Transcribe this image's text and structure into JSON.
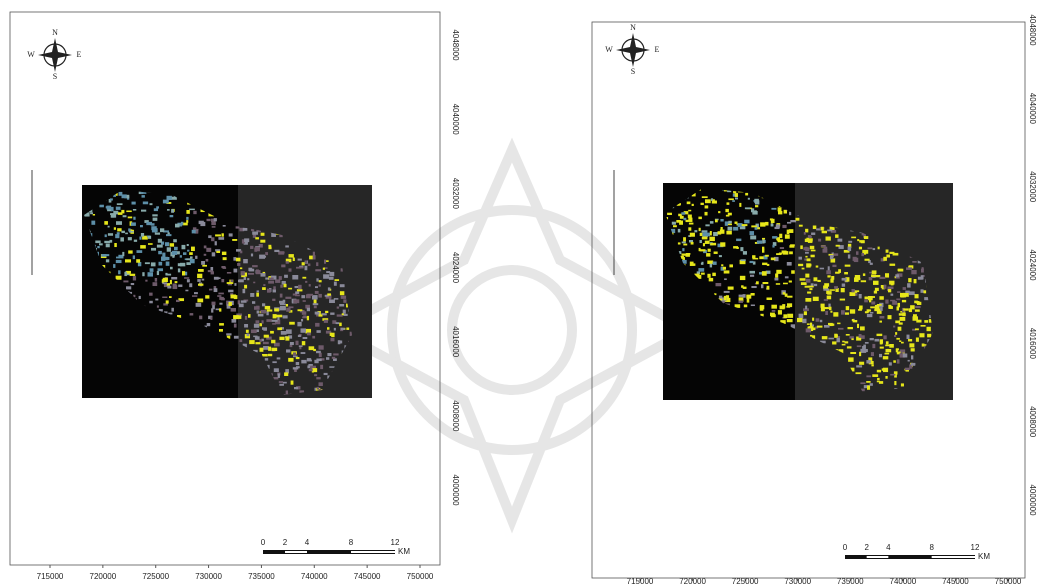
{
  "panels": [
    {
      "compass": {
        "n": "N",
        "e": "E",
        "s": "S",
        "w": "W"
      },
      "x_labels": [
        715000,
        720000,
        725000,
        730000,
        735000,
        740000,
        745000,
        750000
      ],
      "y_labels": [
        4048000,
        4040000,
        4032000,
        4024000,
        4016000,
        4008000,
        4000000
      ],
      "scale": {
        "ticks": [
          0,
          2,
          4,
          8,
          12
        ],
        "unit": "KM"
      }
    },
    {
      "compass": {
        "n": "N",
        "e": "E",
        "s": "S",
        "w": "W"
      },
      "x_labels": [
        715000,
        720000,
        725000,
        730000,
        735000,
        740000,
        745000,
        750000
      ],
      "y_labels": [
        4048000,
        4040000,
        4032000,
        4024000,
        4016000,
        4008000,
        4000000
      ],
      "scale": {
        "ticks": [
          0,
          2,
          4,
          8,
          12
        ],
        "unit": "KM"
      }
    }
  ]
}
